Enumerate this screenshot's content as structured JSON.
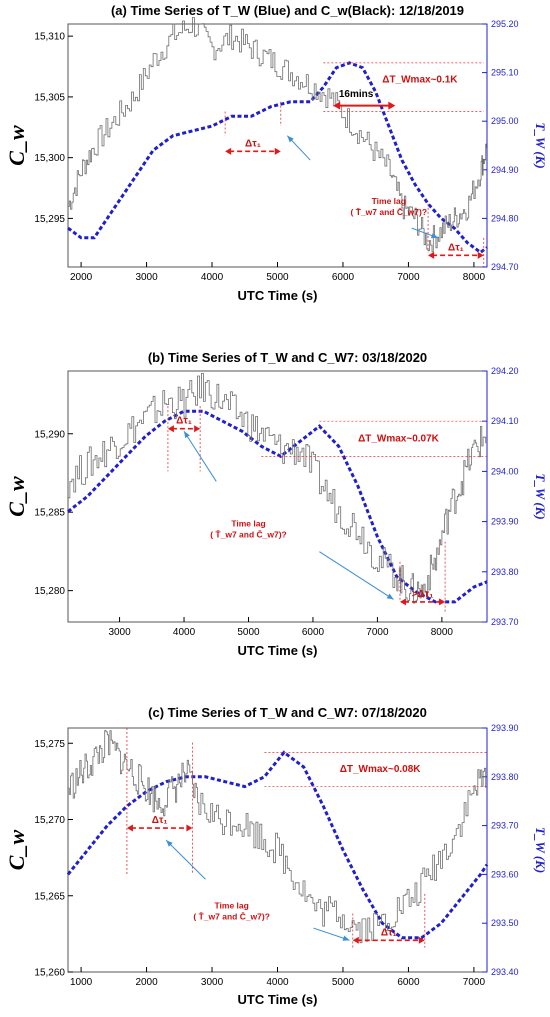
{
  "chart_data": [
    {
      "type": "line",
      "title": "(a) Time Series of  T_W (Blue) and C_w(Black): 12/18/2019",
      "xlabel": "UTC Time (s)",
      "ylabel": "C_w",
      "y2label": "T_W (K)",
      "xlim": [
        1800,
        8200
      ],
      "ylim": [
        15291,
        15311
      ],
      "y2lim": [
        294.7,
        295.2
      ],
      "x_ticks": [
        "2000",
        "3000",
        "4000",
        "5000",
        "6000",
        "7000",
        "8000"
      ],
      "y_ticks": [
        "15,295",
        "15,300",
        "15,305",
        "15,310"
      ],
      "y2_ticks": [
        "294.70",
        "294.80",
        "294.90",
        "295.00",
        "295.10",
        "295.20"
      ],
      "series": [
        {
          "axis": "right",
          "color": "#1f1fd0",
          "x": [
            1800,
            2000,
            2200,
            2500,
            2800,
            3100,
            3400,
            3700,
            4000,
            4300,
            4600,
            4900,
            5200,
            5500,
            5700,
            5900,
            6100,
            6300,
            6500,
            6700,
            6900,
            7100,
            7300,
            7500,
            7700,
            7900,
            8100,
            8200
          ],
          "y": [
            294.78,
            294.76,
            294.76,
            294.82,
            294.88,
            294.94,
            294.97,
            294.98,
            294.99,
            295.01,
            295.01,
            295.03,
            295.04,
            295.04,
            295.07,
            295.11,
            295.12,
            295.11,
            295.06,
            294.99,
            294.92,
            294.87,
            294.83,
            294.8,
            294.78,
            294.75,
            294.73,
            294.74
          ]
        },
        {
          "axis": "left",
          "color": "#6e6e6e",
          "x": [
            1800,
            2000,
            2200,
            2500,
            2800,
            3100,
            3400,
            3700,
            4000,
            4300,
            4600,
            4900,
            5200,
            5500,
            5800,
            6100,
            6400,
            6700,
            6900,
            7100,
            7300,
            7500,
            7700,
            7900,
            8100,
            8200
          ],
          "y": [
            15296,
            15299,
            15301,
            15303,
            15305,
            15308,
            15310,
            15311,
            15309,
            15310,
            15309,
            15308,
            15307,
            15306,
            15305,
            15303,
            15301,
            15299,
            15296,
            15295,
            15293,
            15294,
            15295,
            15296,
            15299,
            15301
          ]
        }
      ],
      "annotations": {
        "dtau_upper": "Δτ₁",
        "dtau_lower": "Δτ₁",
        "dtmax": "ΔT_Wmax~0.1K",
        "lag": "16mins",
        "timelag_1": "Time lag",
        "timelag_2": "( T̄_w7 and C̄_w7)?"
      }
    },
    {
      "type": "line",
      "title": "(b) Time Series of  T_W and C_W7: 03/18/2020",
      "xlabel": "UTC Time (s)",
      "ylabel": "C_w",
      "y2label": "T_W (K)",
      "xlim": [
        2200,
        8700
      ],
      "ylim": [
        15278,
        15294
      ],
      "y2lim": [
        293.7,
        294.2
      ],
      "x_ticks": [
        "3000",
        "4000",
        "5000",
        "6000",
        "7000",
        "8000"
      ],
      "y_ticks": [
        "15,280",
        "15,285",
        "15,290"
      ],
      "y2_ticks": [
        "293.70",
        "293.80",
        "293.90",
        "294.00",
        "294.10",
        "294.20"
      ],
      "series": [
        {
          "axis": "right",
          "color": "#1f1fd0",
          "x": [
            2200,
            2500,
            2800,
            3100,
            3400,
            3700,
            4000,
            4300,
            4600,
            4900,
            5200,
            5500,
            5800,
            6100,
            6400,
            6700,
            7000,
            7300,
            7600,
            7900,
            8200,
            8500,
            8700
          ],
          "y": [
            293.92,
            293.95,
            293.99,
            294.03,
            294.07,
            294.1,
            294.12,
            294.12,
            294.1,
            294.08,
            294.05,
            294.03,
            294.06,
            294.09,
            294.05,
            293.97,
            293.87,
            293.79,
            293.76,
            293.74,
            293.74,
            293.77,
            293.78
          ]
        },
        {
          "axis": "left",
          "color": "#6e6e6e",
          "x": [
            2200,
            2500,
            2800,
            3100,
            3400,
            3700,
            4000,
            4300,
            4600,
            4900,
            5200,
            5500,
            5800,
            6100,
            6400,
            6700,
            7000,
            7300,
            7500,
            7700,
            7900,
            8100,
            8300,
            8500,
            8700
          ],
          "y": [
            15287,
            15288,
            15289,
            15290,
            15291,
            15292,
            15292,
            15293,
            15292,
            15291,
            15290,
            15289,
            15289,
            15287,
            15285,
            15284,
            15282,
            15281,
            15280,
            15280,
            15282,
            15285,
            15287,
            15289,
            15290
          ]
        }
      ],
      "annotations": {
        "dtau_upper": "Δτ₁",
        "dtau_lower": ">Δτ₁",
        "dtmax": "ΔT_Wmax~0.07K",
        "timelag_1": "Time lag",
        "timelag_2": "( T̄_w7 and C̄_w7)?"
      }
    },
    {
      "type": "line",
      "title": "(c) Time Series of  T_W and C_W7: 07/18/2020",
      "xlabel": "UTC Time (s)",
      "ylabel": "C_w",
      "y2label": "T_W (K)",
      "xlim": [
        800,
        7200
      ],
      "ylim": [
        15260,
        15276
      ],
      "y2lim": [
        293.4,
        293.9
      ],
      "x_ticks": [
        "1000",
        "2000",
        "3000",
        "4000",
        "5000",
        "6000",
        "7000"
      ],
      "y_ticks": [
        "15,260",
        "15,265",
        "15,270",
        "15,275"
      ],
      "y2_ticks": [
        "293.40",
        "293.50",
        "293.60",
        "293.70",
        "293.80",
        "293.90"
      ],
      "series": [
        {
          "axis": "right",
          "color": "#1f1fd0",
          "x": [
            800,
            1100,
            1400,
            1700,
            2000,
            2300,
            2600,
            2900,
            3200,
            3500,
            3800,
            4100,
            4400,
            4700,
            5000,
            5300,
            5600,
            5900,
            6200,
            6500,
            6800,
            7100,
            7200
          ],
          "y": [
            293.6,
            293.65,
            293.7,
            293.74,
            293.77,
            293.79,
            293.8,
            293.8,
            293.79,
            293.78,
            293.8,
            293.85,
            293.82,
            293.74,
            293.65,
            293.57,
            293.5,
            293.47,
            293.47,
            293.5,
            293.55,
            293.6,
            293.62
          ]
        },
        {
          "axis": "left",
          "color": "#6e6e6e",
          "x": [
            800,
            1000,
            1200,
            1400,
            1600,
            1800,
            2000,
            2200,
            2400,
            2600,
            2800,
            3100,
            3400,
            3700,
            4000,
            4300,
            4600,
            4900,
            5200,
            5500,
            5800,
            6100,
            6400,
            6700,
            7000,
            7200
          ],
          "y": [
            15272,
            15273,
            15274,
            15275,
            15274,
            15273,
            15272,
            15271,
            15272,
            15273,
            15271,
            15270,
            15270,
            15269,
            15268,
            15266,
            15264,
            15264,
            15263,
            15263,
            15264,
            15265,
            15267,
            15269,
            15272,
            15273
          ]
        }
      ],
      "annotations": {
        "dtau_upper": "Δτ₁",
        "dtau_lower": "Δτ₁",
        "dtmax": "ΔT_Wmax~0.08K",
        "timelag_1": "Time lag",
        "timelag_2": "( T̄_w7 and C̄_w7)?"
      }
    }
  ]
}
